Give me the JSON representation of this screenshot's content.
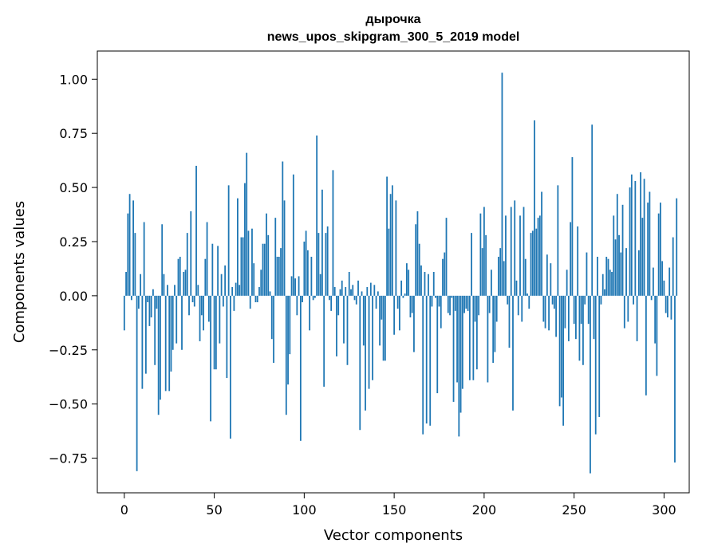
{
  "chart_data": {
    "type": "bar",
    "title": "дырочка",
    "subtitle": "news_upos_skipgram_300_5_2019 model",
    "xlabel": "Vector components",
    "ylabel": "Components values",
    "xlim": [
      -15,
      314
    ],
    "ylim": [
      -0.91,
      1.13
    ],
    "xticks": [
      0,
      50,
      100,
      150,
      200,
      250,
      300
    ],
    "yticks": [
      -0.75,
      -0.5,
      -0.25,
      0.0,
      0.25,
      0.5,
      0.75,
      1.0
    ],
    "ytick_labels": [
      "−0.75",
      "−0.50",
      "−0.25",
      "0.00",
      "0.25",
      "0.50",
      "0.75",
      "1.00"
    ],
    "bar_color": "#1f77b4",
    "grid": false,
    "values": [
      -0.16,
      0.11,
      0.38,
      0.47,
      -0.02,
      0.44,
      0.29,
      -0.81,
      -0.06,
      0.1,
      -0.43,
      0.34,
      -0.36,
      -0.03,
      -0.14,
      -0.1,
      0.03,
      -0.32,
      -0.06,
      -0.55,
      -0.48,
      0.33,
      0.1,
      -0.44,
      0.05,
      -0.44,
      -0.35,
      -0.25,
      0.05,
      -0.22,
      0.17,
      0.18,
      -0.25,
      0.11,
      0.12,
      0.29,
      -0.09,
      0.39,
      -0.03,
      -0.05,
      0.6,
      0.05,
      -0.21,
      -0.09,
      -0.16,
      0.17,
      0.34,
      -0.12,
      -0.58,
      0.24,
      -0.34,
      -0.34,
      0.23,
      -0.22,
      0.1,
      -0.05,
      0.14,
      -0.38,
      0.51,
      -0.66,
      0.04,
      -0.07,
      0.06,
      0.45,
      0.05,
      0.27,
      0.27,
      0.52,
      0.66,
      0.3,
      -0.06,
      0.31,
      0.15,
      -0.03,
      -0.03,
      0.04,
      0.12,
      0.24,
      0.24,
      0.38,
      0.28,
      0.02,
      -0.2,
      -0.31,
      0.36,
      0.18,
      0.18,
      0.22,
      0.62,
      0.44,
      -0.55,
      -0.41,
      -0.27,
      0.09,
      0.56,
      0.08,
      -0.09,
      0.09,
      -0.67,
      -0.03,
      0.25,
      0.3,
      0.21,
      -0.16,
      0.18,
      -0.02,
      -0.01,
      0.74,
      0.29,
      0.1,
      0.49,
      -0.42,
      0.29,
      0.32,
      -0.02,
      -0.07,
      0.58,
      0.04,
      -0.28,
      -0.09,
      0.03,
      0.07,
      -0.22,
      0.04,
      -0.32,
      0.11,
      0.03,
      0.05,
      -0.02,
      -0.04,
      0.07,
      -0.62,
      0.02,
      -0.23,
      -0.53,
      0.04,
      -0.43,
      0.06,
      -0.39,
      0.05,
      -0.06,
      0.02,
      -0.23,
      -0.11,
      -0.3,
      -0.3,
      0.55,
      0.31,
      0.47,
      0.51,
      -0.18,
      0.44,
      -0.06,
      -0.16,
      0.07,
      -0.01,
      0.01,
      0.15,
      0.12,
      -0.1,
      -0.08,
      -0.26,
      0.33,
      0.39,
      0.24,
      0.14,
      -0.64,
      0.11,
      -0.59,
      0.1,
      -0.6,
      -0.05,
      0.11,
      -0.01,
      -0.45,
      -0.05,
      -0.15,
      0.17,
      0.2,
      0.36,
      -0.08,
      -0.09,
      -0.01,
      -0.49,
      -0.07,
      -0.4,
      -0.65,
      -0.54,
      -0.43,
      -0.08,
      -0.06,
      -0.07,
      -0.39,
      0.29,
      -0.39,
      -0.12,
      -0.34,
      -0.09,
      0.38,
      0.22,
      0.41,
      0.28,
      -0.4,
      -0.08,
      0.12,
      -0.31,
      -0.26,
      -0.12,
      0.18,
      0.22,
      1.03,
      0.16,
      0.37,
      -0.04,
      -0.24,
      0.41,
      -0.53,
      0.44,
      0.07,
      -0.09,
      0.37,
      -0.12,
      0.41,
      0.17,
      0.01,
      -0.06,
      0.29,
      0.3,
      0.81,
      0.31,
      0.36,
      0.37,
      0.48,
      -0.12,
      -0.15,
      0.19,
      -0.16,
      0.15,
      -0.04,
      -0.06,
      -0.19,
      0.51,
      -0.51,
      -0.47,
      -0.6,
      -0.15,
      0.12,
      -0.21,
      0.34,
      0.64,
      -0.13,
      -0.2,
      0.32,
      -0.3,
      -0.13,
      -0.32,
      -0.04,
      0.2,
      -0.13,
      -0.82,
      0.79,
      -0.2,
      -0.64,
      0.18,
      -0.56,
      -0.04,
      0.1,
      0.03,
      0.18,
      0.17,
      0.12,
      0.11,
      0.37,
      0.26,
      0.47,
      0.28,
      0.2,
      0.42,
      -0.15,
      0.22,
      -0.12,
      0.5,
      0.56,
      -0.04,
      0.53,
      -0.21,
      0.21,
      0.57,
      0.36,
      0.54,
      -0.46,
      0.43,
      0.48,
      -0.02,
      0.13,
      -0.22,
      -0.37,
      0.38,
      0.43,
      0.16,
      0.07,
      -0.08,
      -0.1,
      0.13,
      -0.11,
      0.27,
      -0.77,
      0.45
    ]
  }
}
